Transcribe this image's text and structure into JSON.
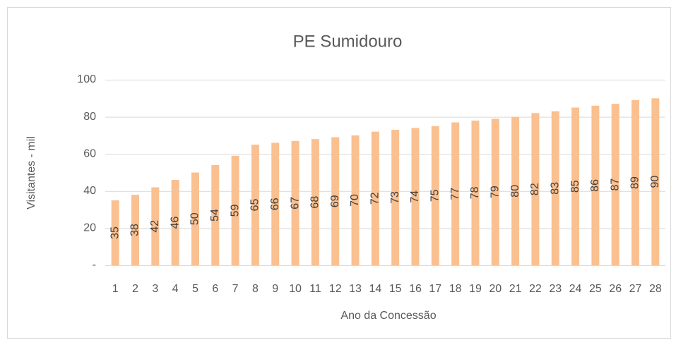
{
  "chart_data": {
    "type": "bar",
    "title": "PE Sumidouro",
    "x_label": "Ano da Concessão",
    "y_label": "Visitantes - mil",
    "categories": [
      "1",
      "2",
      "3",
      "4",
      "5",
      "6",
      "7",
      "8",
      "9",
      "10",
      "11",
      "12",
      "13",
      "14",
      "15",
      "16",
      "17",
      "18",
      "19",
      "20",
      "21",
      "22",
      "23",
      "24",
      "25",
      "26",
      "27",
      "28"
    ],
    "values": [
      35,
      38,
      42,
      46,
      50,
      54,
      59,
      65,
      66,
      67,
      68,
      69,
      70,
      72,
      73,
      74,
      75,
      77,
      78,
      79,
      80,
      82,
      83,
      85,
      86,
      87,
      89,
      90
    ],
    "color": "#fac090",
    "ylim": [
      0,
      100
    ],
    "yticks": [
      {
        "value": 0,
        "label": "-"
      },
      20,
      40,
      60,
      80,
      100
    ],
    "grid": true
  }
}
